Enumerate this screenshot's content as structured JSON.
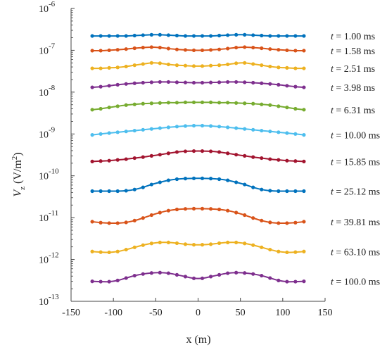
{
  "chart_data": {
    "type": "line",
    "xlabel": "x (m)",
    "ylabel": "V_z (V/m^2)",
    "x_ticks": [
      -150,
      -100,
      -50,
      0,
      50,
      100,
      150
    ],
    "y_ticks": [
      {
        "base": "10",
        "exp": "-13",
        "value": 1e-13
      },
      {
        "base": "10",
        "exp": "-12",
        "value": 1e-12
      },
      {
        "base": "10",
        "exp": "-11",
        "value": 1e-11
      },
      {
        "base": "10",
        "exp": "-10",
        "value": 1e-10
      },
      {
        "base": "10",
        "exp": "-9",
        "value": 1e-09
      },
      {
        "base": "10",
        "exp": "-8",
        "value": 1e-08
      },
      {
        "base": "10",
        "exp": "-7",
        "value": 1e-07
      },
      {
        "base": "10",
        "exp": "-6",
        "value": 1e-06
      }
    ],
    "xlim": [
      -150,
      150
    ],
    "ylim": [
      1e-13,
      1e-06
    ],
    "y_scale": "log",
    "grid": false,
    "legend_position": "right, inline at each curve's right end",
    "x": [
      -125,
      -115,
      -105,
      -95,
      -85,
      -75,
      -65,
      -55,
      -45,
      -35,
      -25,
      -15,
      -5,
      5,
      15,
      25,
      35,
      45,
      55,
      65,
      75,
      85,
      95,
      105,
      115,
      125
    ],
    "series": [
      {
        "name": "t = 1.00 ms",
        "color": "#0072BD",
        "values": [
          2.2e-07,
          2.2e-07,
          2.2e-07,
          2.2e-07,
          2.2e-07,
          2.25e-07,
          2.3e-07,
          2.35e-07,
          2.35e-07,
          2.3e-07,
          2.25e-07,
          2.2e-07,
          2.2e-07,
          2.2e-07,
          2.2e-07,
          2.25e-07,
          2.3e-07,
          2.35e-07,
          2.35e-07,
          2.3e-07,
          2.25e-07,
          2.2e-07,
          2.2e-07,
          2.2e-07,
          2.2e-07,
          2.2e-07
        ]
      },
      {
        "name": "t = 1.58 ms",
        "color": "#D95319",
        "values": [
          9.8e-08,
          9.8e-08,
          1e-07,
          1.03e-07,
          1.07e-07,
          1.12e-07,
          1.16e-07,
          1.19e-07,
          1.16e-07,
          1.1e-07,
          1.05e-07,
          1.02e-07,
          1e-07,
          1e-07,
          1.02e-07,
          1.05e-07,
          1.1e-07,
          1.16e-07,
          1.19e-07,
          1.16e-07,
          1.12e-07,
          1.07e-07,
          1.03e-07,
          1e-07,
          9.8e-08,
          9.8e-08
        ]
      },
      {
        "name": "t = 2.51 ms",
        "color": "#EDB120",
        "values": [
          3.7e-08,
          3.7e-08,
          3.8e-08,
          3.9e-08,
          4.1e-08,
          4.4e-08,
          4.7e-08,
          5e-08,
          4.9e-08,
          4.6e-08,
          4.4e-08,
          4.3e-08,
          4.2e-08,
          4.2e-08,
          4.3e-08,
          4.4e-08,
          4.6e-08,
          4.9e-08,
          5e-08,
          4.7e-08,
          4.4e-08,
          4.1e-08,
          3.9e-08,
          3.8e-08,
          3.7e-08,
          3.7e-08
        ]
      },
      {
        "name": "t = 3.98 ms",
        "color": "#7E2F8E",
        "values": [
          1.3e-08,
          1.35e-08,
          1.42e-08,
          1.5e-08,
          1.57e-08,
          1.63e-08,
          1.68e-08,
          1.72e-08,
          1.75e-08,
          1.75e-08,
          1.72e-08,
          1.7e-08,
          1.68e-08,
          1.68e-08,
          1.7e-08,
          1.72e-08,
          1.75e-08,
          1.75e-08,
          1.72e-08,
          1.68e-08,
          1.63e-08,
          1.57e-08,
          1.5e-08,
          1.42e-08,
          1.35e-08,
          1.3e-08
        ]
      },
      {
        "name": "t = 6.31 ms",
        "color": "#77AC30",
        "values": [
          3.8e-09,
          4e-09,
          4.3e-09,
          4.6e-09,
          4.9e-09,
          5.1e-09,
          5.3e-09,
          5.4e-09,
          5.5e-09,
          5.6e-09,
          5.6e-09,
          5.7e-09,
          5.7e-09,
          5.7e-09,
          5.7e-09,
          5.6e-09,
          5.6e-09,
          5.5e-09,
          5.4e-09,
          5.3e-09,
          5.1e-09,
          4.9e-09,
          4.6e-09,
          4.3e-09,
          4e-09,
          3.8e-09
        ]
      },
      {
        "name": "t = 10.00 ms",
        "color": "#4DBEEE",
        "values": [
          9.5e-10,
          1e-09,
          1.05e-09,
          1.1e-09,
          1.15e-09,
          1.2e-09,
          1.26e-09,
          1.32e-09,
          1.38e-09,
          1.44e-09,
          1.5e-09,
          1.55e-09,
          1.58e-09,
          1.58e-09,
          1.55e-09,
          1.5e-09,
          1.44e-09,
          1.38e-09,
          1.32e-09,
          1.26e-09,
          1.2e-09,
          1.15e-09,
          1.1e-09,
          1.05e-09,
          1e-09,
          9.5e-10
        ]
      },
      {
        "name": "t = 15.85 ms",
        "color": "#A2142F",
        "values": [
          2.2e-10,
          2.25e-10,
          2.3e-10,
          2.4e-10,
          2.5e-10,
          2.65e-10,
          2.8e-10,
          3e-10,
          3.2e-10,
          3.45e-10,
          3.7e-10,
          3.85e-10,
          3.9e-10,
          3.9e-10,
          3.85e-10,
          3.7e-10,
          3.45e-10,
          3.2e-10,
          3e-10,
          2.8e-10,
          2.65e-10,
          2.5e-10,
          2.4e-10,
          2.3e-10,
          2.25e-10,
          2.2e-10
        ]
      },
      {
        "name": "t = 25.12 ms",
        "color": "#0072BD",
        "values": [
          4.3e-11,
          4.3e-11,
          4.3e-11,
          4.3e-11,
          4.4e-11,
          4.7e-11,
          5.3e-11,
          6.2e-11,
          7e-11,
          7.8e-11,
          8.3e-11,
          8.6e-11,
          8.7e-11,
          8.7e-11,
          8.6e-11,
          8.3e-11,
          7.8e-11,
          7e-11,
          6.2e-11,
          5.3e-11,
          4.7e-11,
          4.4e-11,
          4.3e-11,
          4.3e-11,
          4.3e-11,
          4.3e-11
        ]
      },
      {
        "name": "t = 39.81 ms",
        "color": "#D95319",
        "values": [
          8e-12,
          7.6e-12,
          7.4e-12,
          7.4e-12,
          7.7e-12,
          8.5e-12,
          9.8e-12,
          1.15e-11,
          1.32e-11,
          1.47e-11,
          1.57e-11,
          1.62e-11,
          1.64e-11,
          1.64e-11,
          1.62e-11,
          1.57e-11,
          1.47e-11,
          1.32e-11,
          1.15e-11,
          9.8e-12,
          8.5e-12,
          7.7e-12,
          7.4e-12,
          7.4e-12,
          7.6e-12,
          8e-12
        ]
      },
      {
        "name": "t = 63.10 ms",
        "color": "#EDB120",
        "values": [
          1.55e-12,
          1.5e-12,
          1.48e-12,
          1.55e-12,
          1.72e-12,
          1.95e-12,
          2.2e-12,
          2.42e-12,
          2.55e-12,
          2.55e-12,
          2.45e-12,
          2.32e-12,
          2.25e-12,
          2.25e-12,
          2.32e-12,
          2.45e-12,
          2.55e-12,
          2.55e-12,
          2.42e-12,
          2.2e-12,
          1.95e-12,
          1.72e-12,
          1.55e-12,
          1.48e-12,
          1.5e-12,
          1.55e-12
        ]
      },
      {
        "name": "t = 100.0 ms",
        "color": "#7E2F8E",
        "values": [
          3e-13,
          2.95e-13,
          2.95e-13,
          3.15e-13,
          3.6e-13,
          4.1e-13,
          4.5e-13,
          4.75e-13,
          4.85e-13,
          4.7e-13,
          4.3e-13,
          3.9e-13,
          3.55e-13,
          3.55e-13,
          3.9e-13,
          4.3e-13,
          4.7e-13,
          4.85e-13,
          4.75e-13,
          4.5e-13,
          4.1e-13,
          3.6e-13,
          3.15e-13,
          2.95e-13,
          2.95e-13,
          3e-13
        ]
      }
    ]
  }
}
